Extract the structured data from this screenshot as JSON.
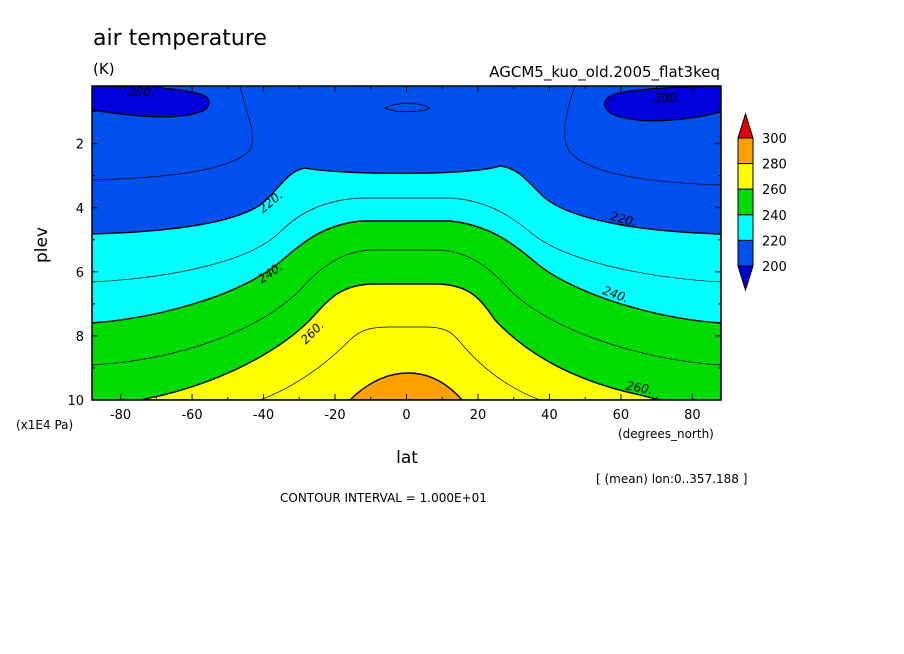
{
  "chart_data": {
    "type": "heatmap",
    "title": "air temperature",
    "units": "(K)",
    "dataset": "AGCM5_kuo_old.2005_flat3keq",
    "xlabel": "lat",
    "x_units": "(degrees_north)",
    "ylabel": "plev",
    "y_units": "(x1E4 Pa)",
    "averaging_note": "[ (mean) lon:0..357.188 ]",
    "contour_interval_text": "CONTOUR INTERVAL = 1.000E+01",
    "xlim": [
      -88,
      88
    ],
    "ylim": [
      10,
      0.2
    ],
    "x_ticks": [
      "-80",
      "-60",
      "-40",
      "-20",
      "0",
      "20",
      "40",
      "60",
      "80"
    ],
    "y_ticks": [
      "2",
      "4",
      "6",
      "8",
      "10"
    ],
    "colorbar": {
      "levels": [
        "300",
        "280",
        "260",
        "240",
        "220",
        "200"
      ],
      "colors": [
        "#e60000",
        "#ffa000",
        "#ffff00",
        "#00dc00",
        "#00ffff",
        "#0050f0",
        "#0000dc"
      ]
    },
    "contour_labels": [
      "200.",
      "200.",
      "220.",
      "220.",
      "240.",
      "240.",
      "260.",
      "260."
    ],
    "bands": [
      {
        "lower_level": 200,
        "upper_level": 210,
        "color": "#0050f0"
      },
      {
        "lower_level": 220,
        "upper_level": 230,
        "color": "#00ffff"
      },
      {
        "lower_level": 240,
        "upper_level": 250,
        "color": "#00dc00"
      },
      {
        "lower_level": 260,
        "upper_level": 270,
        "color": "#ffff00"
      },
      {
        "lower_level": 280,
        "upper_level": 290,
        "color": "#ffa000"
      }
    ]
  }
}
